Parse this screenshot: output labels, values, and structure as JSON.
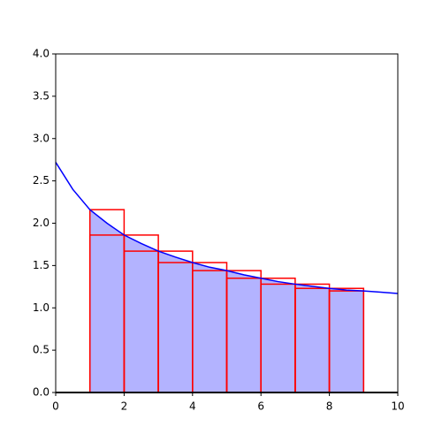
{
  "chart_data": {
    "type": "line",
    "x": [
      0,
      0.5,
      1,
      1.5,
      2,
      2.5,
      3,
      3.5,
      4,
      4.5,
      5,
      5.5,
      6,
      6.5,
      7,
      7.5,
      8,
      8.5,
      9,
      9.5,
      10
    ],
    "series": [
      {
        "color": "#0000ff",
        "values": [
          2.72,
          2.4,
          2.16,
          2.0,
          1.86,
          1.76,
          1.67,
          1.6,
          1.535,
          1.48,
          1.44,
          1.39,
          1.35,
          1.31,
          1.28,
          1.255,
          1.23,
          1.21,
          1.2,
          1.185,
          1.17
        ]
      }
    ],
    "fill": {
      "color": "#b3b3ff",
      "from": 1,
      "to": 9
    },
    "bars": [
      {
        "color": "#ff0000",
        "edges": [
          1,
          2,
          3,
          4,
          5,
          6,
          7,
          8,
          9
        ],
        "values": [
          2.16,
          1.86,
          1.67,
          1.535,
          1.44,
          1.35,
          1.28,
          1.23
        ]
      },
      {
        "color": "#ff0000",
        "edges": [
          1,
          2,
          3,
          4,
          5,
          6,
          7,
          8,
          9
        ],
        "values": [
          1.86,
          1.67,
          1.535,
          1.44,
          1.35,
          1.28,
          1.23,
          1.2
        ]
      }
    ],
    "xlim": [
      0,
      10
    ],
    "xticks": [
      0,
      2,
      4,
      6,
      8,
      10
    ],
    "ylim": [
      0,
      4
    ],
    "yticks": [
      {
        "value": 0,
        "label": "0.0"
      },
      {
        "value": 0.5,
        "label": "0.5"
      },
      {
        "value": 1,
        "label": "1.0"
      },
      {
        "value": 1.5,
        "label": "1.5"
      },
      {
        "value": 2,
        "label": "2.0"
      },
      {
        "value": 2.5,
        "label": "2.5"
      },
      {
        "value": 3,
        "label": "3.0"
      },
      {
        "value": 3.5,
        "label": "3.5"
      },
      {
        "value": 4,
        "label": "4.0"
      }
    ]
  }
}
